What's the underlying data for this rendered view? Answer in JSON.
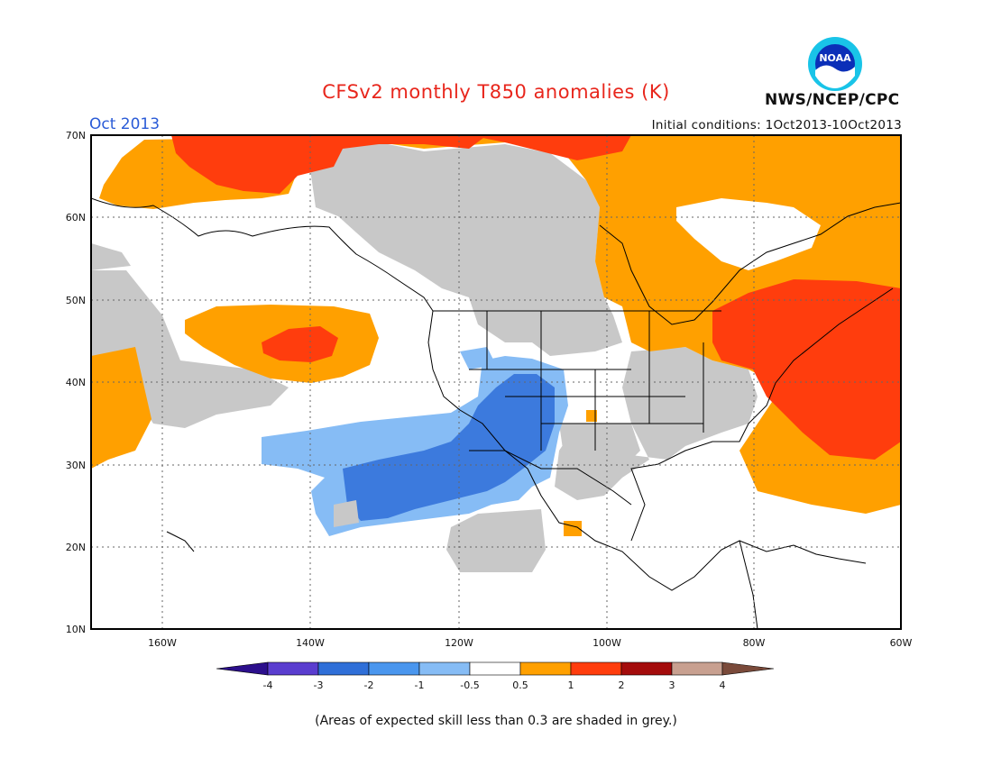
{
  "header": {
    "title": "CFSv2 monthly T850 anomalies (K)",
    "period": "Oct 2013",
    "initial_conditions": "Initial conditions: 1Oct2013-10Oct2013",
    "agency": "NWS/NCEP/CPC",
    "logo_text": "NOAA"
  },
  "map": {
    "lon_range": [
      -172,
      -60
    ],
    "lat_range": [
      10,
      70
    ],
    "lat_ticks": [
      "10N",
      "20N",
      "30N",
      "40N",
      "50N",
      "60N",
      "70N"
    ],
    "lon_ticks": [
      "160W",
      "140W",
      "120W",
      "100W",
      "80W",
      "60W"
    ],
    "grid": "dotted"
  },
  "legend": {
    "labels": [
      "-4",
      "-3",
      "-2",
      "-1",
      "-0.5",
      "0.5",
      "1",
      "2",
      "3",
      "4"
    ],
    "colors": {
      "lt_m4": "#2c0f8c",
      "m4_m3": "#5a3dcf",
      "m3_m2": "#2f6fd8",
      "m2_m1": "#4a96ee",
      "m1_m05": "#86bcf5",
      "m05_05": "#ffffff",
      "05_1": "#ffa000",
      "1_2": "#ff3d0d",
      "2_3": "#a40c0c",
      "3_4": "#c8a090",
      "gt_4": "#7a4a3a"
    },
    "grey": "#c8c8c8"
  },
  "footnote": "(Areas of expected skill less than 0.3 are shaded in grey.)"
}
